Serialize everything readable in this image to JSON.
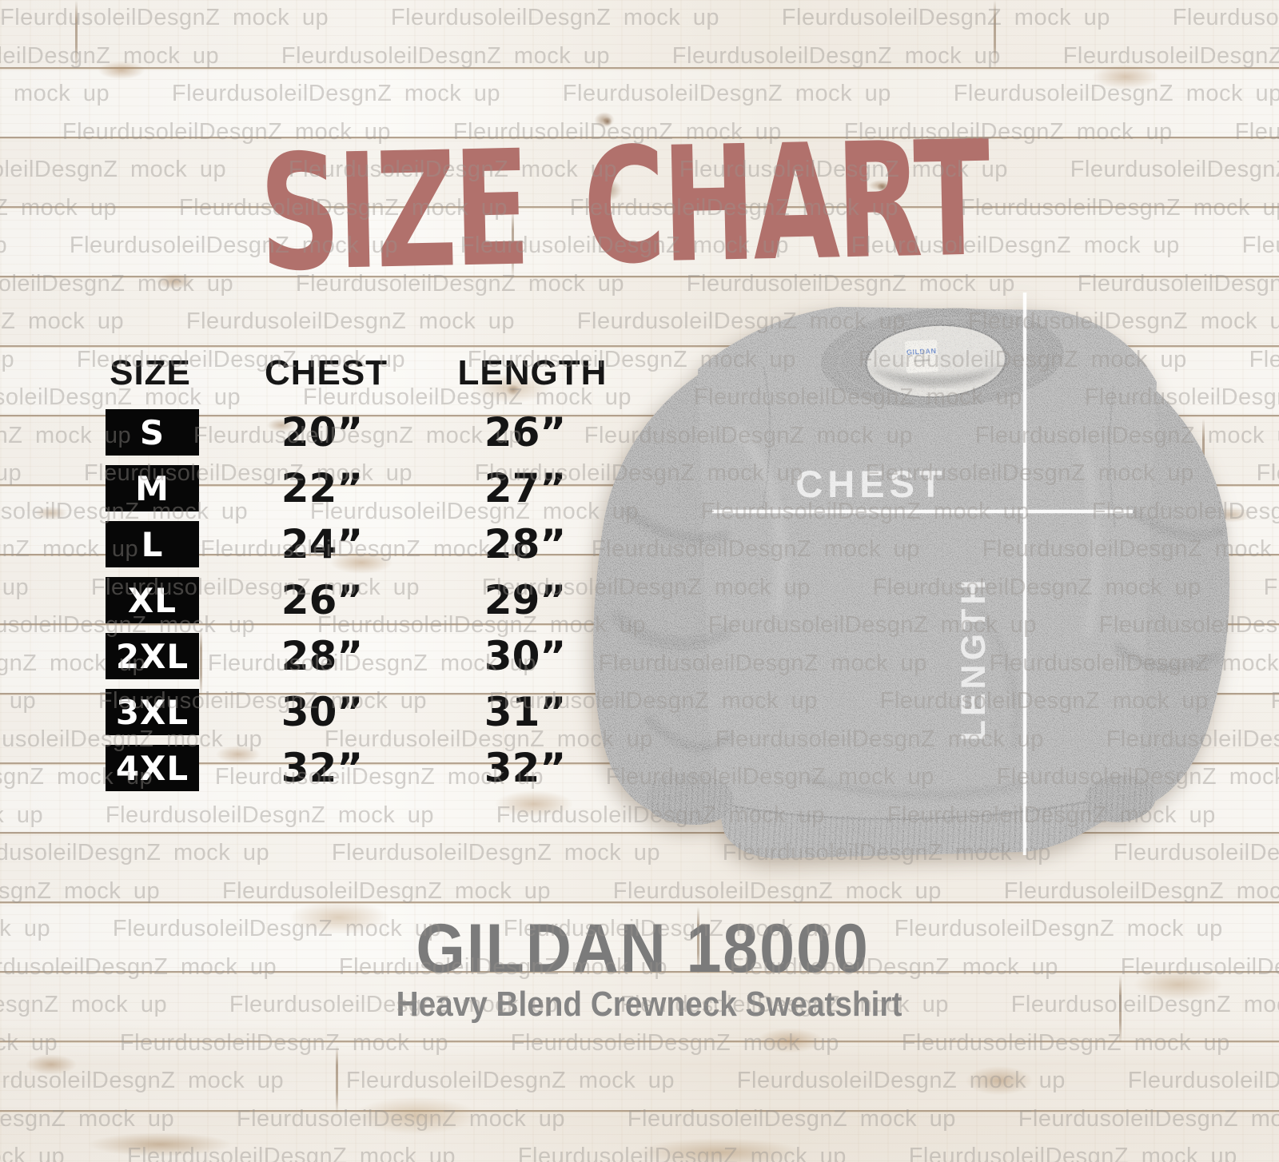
{
  "title": "SIZE CHART",
  "watermark": {
    "text": "FleurdusoleilDesgnZ mock up",
    "rows": 31,
    "repeats": 5
  },
  "table": {
    "headers": [
      "SIZE",
      "CHEST",
      "LENGTH"
    ],
    "rows": [
      {
        "size": "S",
        "chest": "20”",
        "length": "26”"
      },
      {
        "size": "M",
        "chest": "22”",
        "length": "27”"
      },
      {
        "size": "L",
        "chest": "24”",
        "length": "28”"
      },
      {
        "size": "XL",
        "chest": "26”",
        "length": "29”"
      },
      {
        "size": "2XL",
        "chest": "28”",
        "length": "30”"
      },
      {
        "size": "3XL",
        "chest": "30”",
        "length": "31”"
      },
      {
        "size": "4XL",
        "chest": "32”",
        "length": "32”"
      }
    ]
  },
  "sweatshirt": {
    "chest_label": "CHEST",
    "length_label": "LENGTH",
    "neck_label": "GILDAN"
  },
  "product": {
    "name": "GILDAN 18000",
    "description": "Heavy Blend Crewneck Sweatshirt"
  },
  "colors": {
    "title": "#b1716c",
    "badge_bg": "#070707",
    "badge_text": "#ffffff",
    "table_text": "#141414",
    "product_text": "#7b7b7b",
    "wood_seam": "#795c3d",
    "sweatshirt_gray": "#a2a2a2",
    "measure_line": "#ffffff",
    "neck_label_blue": "#3a6fc4"
  },
  "chart_data": {
    "type": "table",
    "title": "SIZE CHART",
    "columns": [
      "SIZE",
      "CHEST",
      "LENGTH"
    ],
    "rows": [
      [
        "S",
        "20”",
        "26”"
      ],
      [
        "M",
        "22”",
        "27”"
      ],
      [
        "L",
        "24”",
        "28”"
      ],
      [
        "XL",
        "26”",
        "29”"
      ],
      [
        "2XL",
        "28”",
        "30”"
      ],
      [
        "3XL",
        "30”",
        "31”"
      ],
      [
        "4XL",
        "32”",
        "32”"
      ]
    ],
    "sizes": [
      "S",
      "M",
      "L",
      "XL",
      "2XL",
      "3XL",
      "4XL"
    ],
    "chest_inches": [
      20,
      22,
      24,
      26,
      28,
      30,
      32
    ],
    "length_inches": [
      26,
      27,
      28,
      29,
      30,
      31,
      32
    ],
    "product": "GILDAN 18000 Heavy Blend Crewneck Sweatshirt"
  }
}
